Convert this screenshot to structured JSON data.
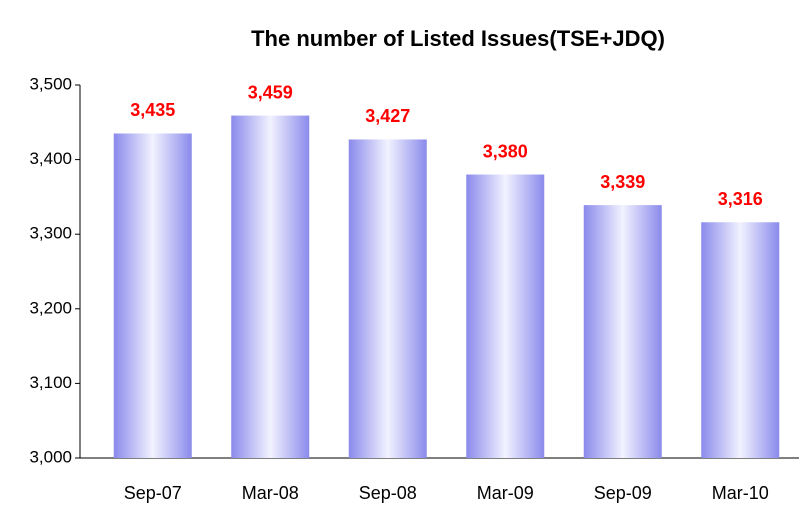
{
  "chart_data": {
    "type": "bar",
    "title": "The number of Listed Issues(TSE+JDQ)",
    "categories": [
      "Sep-07",
      "Mar-08",
      "Sep-08",
      "Mar-09",
      "Sep-09",
      "Mar-10"
    ],
    "values": [
      3435,
      3459,
      3427,
      3380,
      3339,
      3316
    ],
    "value_labels": [
      "3,435",
      "3,459",
      "3,427",
      "3,380",
      "3,339",
      "3,316"
    ],
    "color": "#8a8aec",
    "value_label_color": "#ff0000",
    "ylim": [
      3000,
      3500
    ],
    "yticks": [
      {
        "value": 3000,
        "label": "3,000"
      },
      {
        "value": 3100,
        "label": "3,100"
      },
      {
        "value": 3200,
        "label": "3,200"
      },
      {
        "value": 3300,
        "label": "3,300"
      },
      {
        "value": 3400,
        "label": "3,400"
      },
      {
        "value": 3500,
        "label": "3,500"
      }
    ],
    "grid": false
  }
}
